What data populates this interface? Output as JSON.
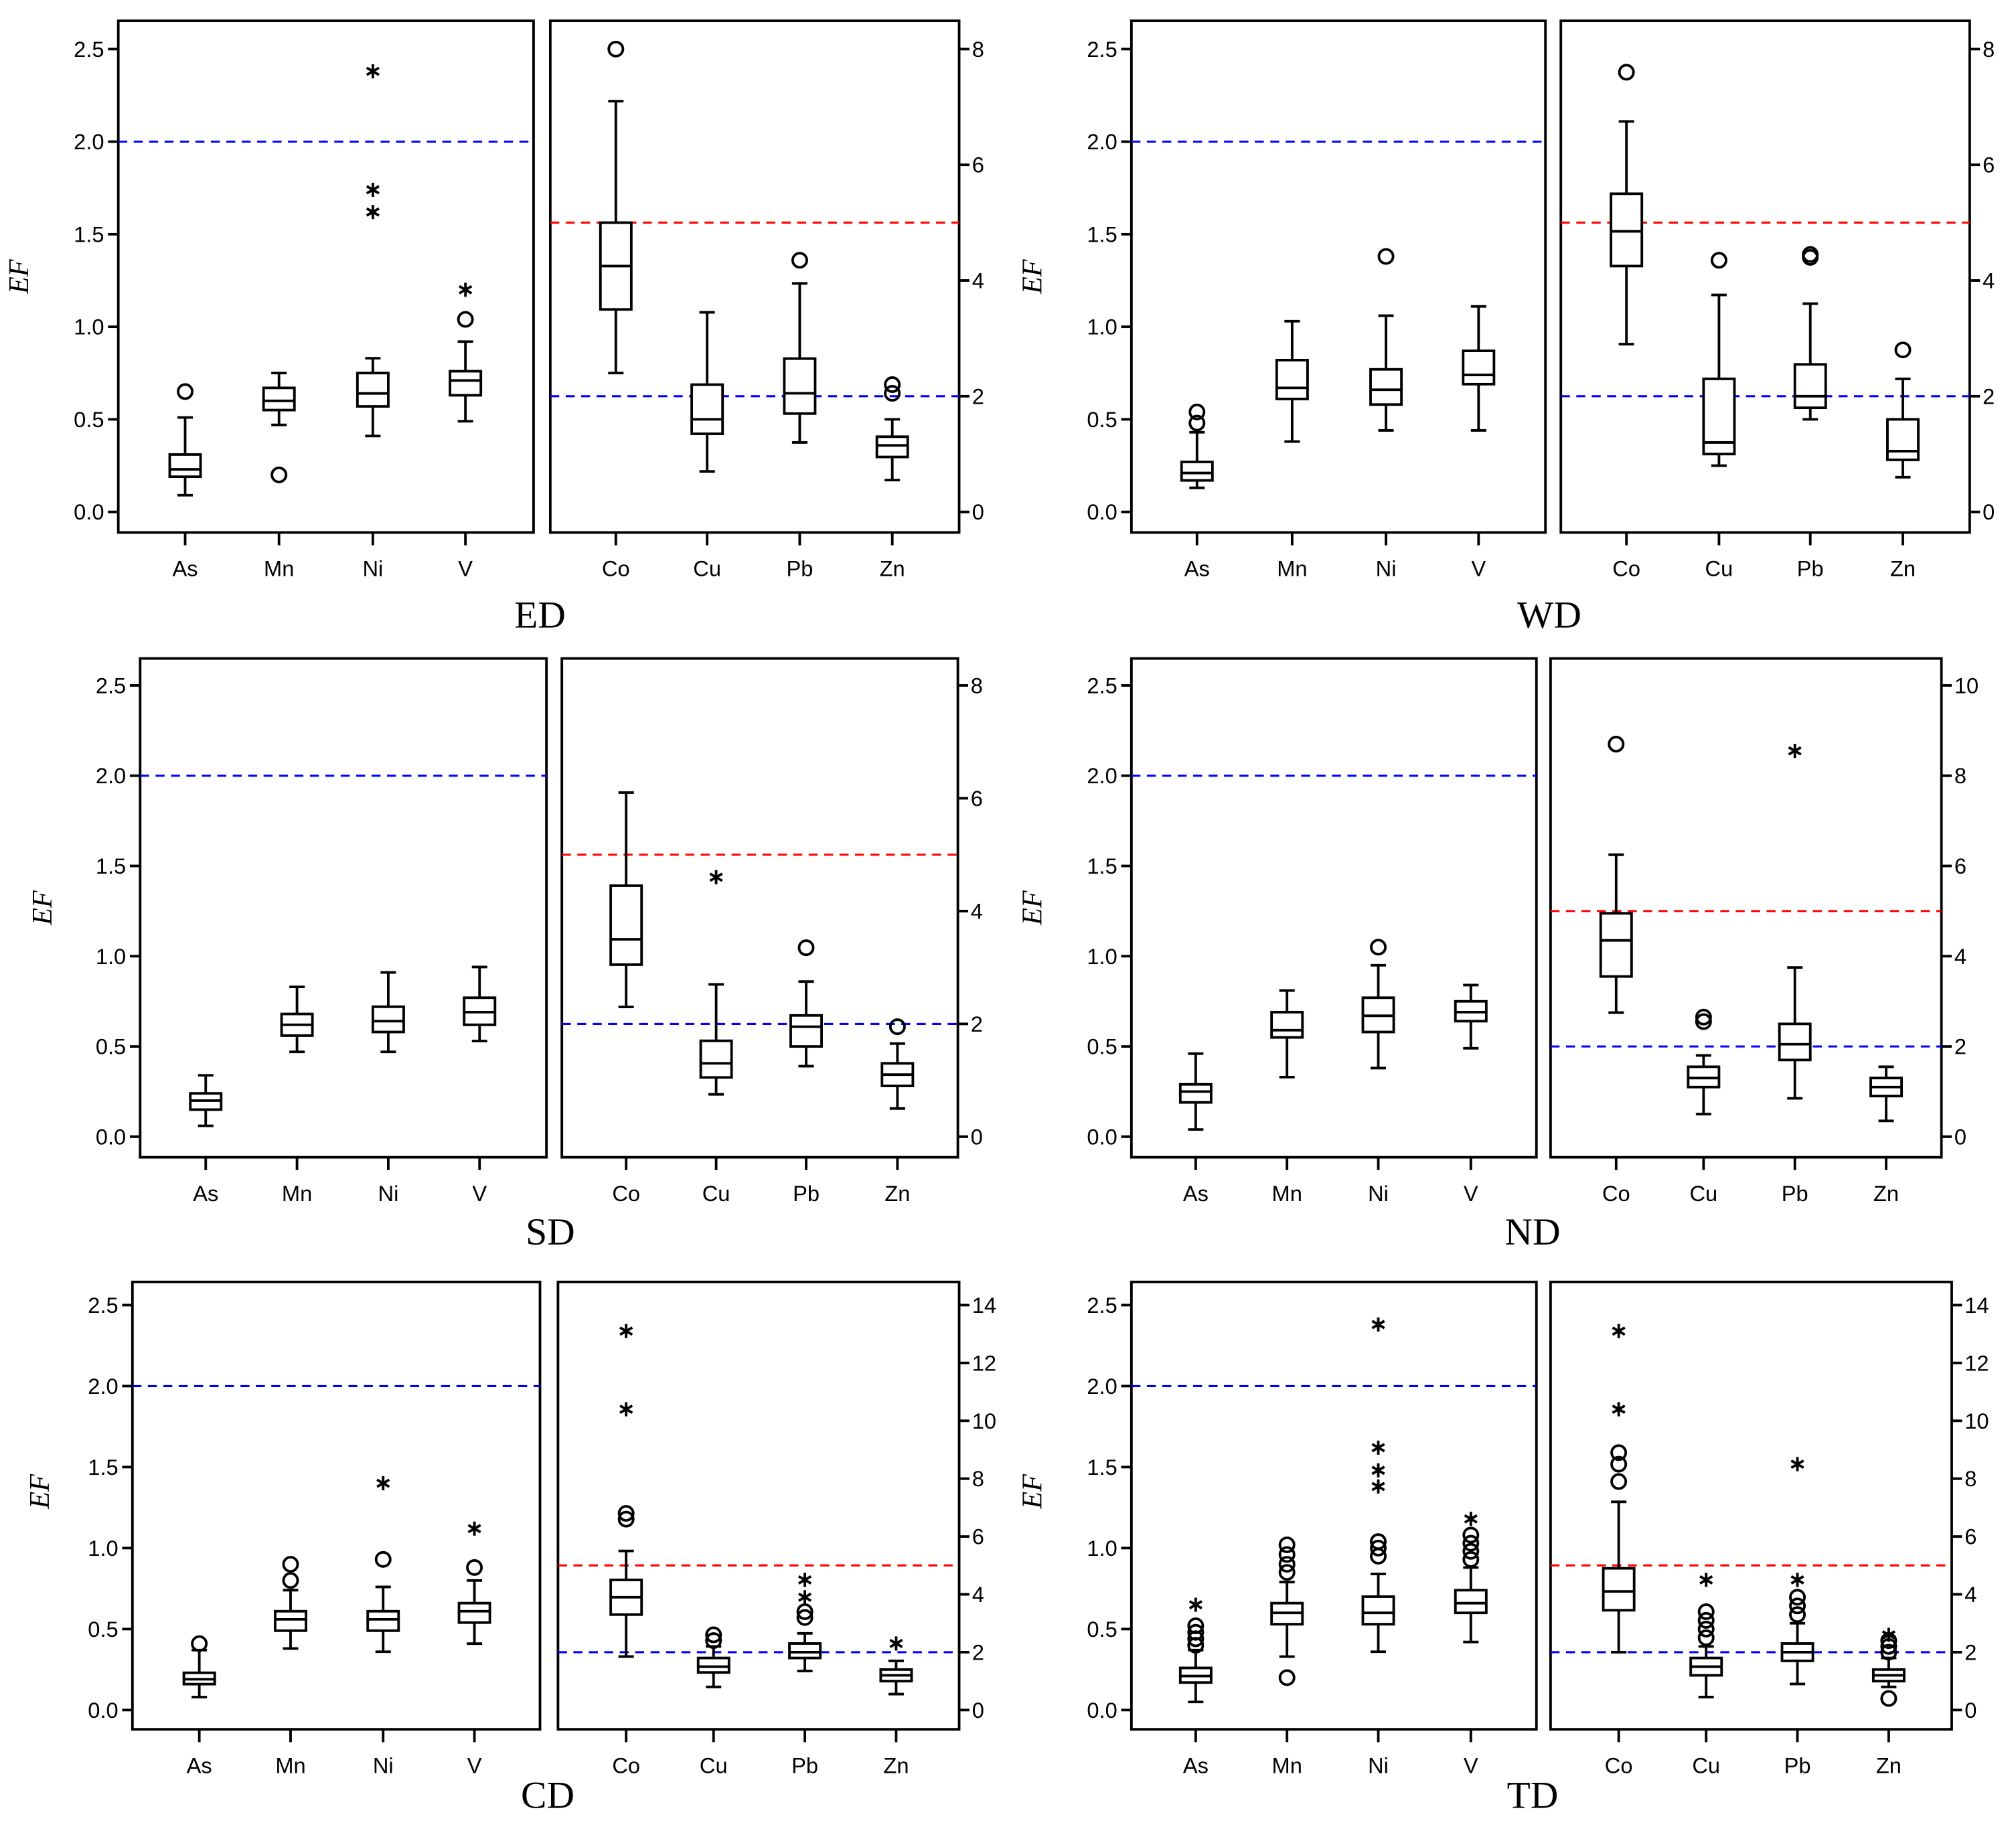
{
  "chart_data": {
    "type": "boxplot",
    "ylabel": "EF",
    "reference_lines": {
      "left": [
        {
          "value": 2,
          "color": "#0000ff"
        }
      ],
      "right": [
        {
          "value": 5,
          "color": "#ff0000"
        },
        {
          "value": 2,
          "color": "#0000ff"
        }
      ]
    },
    "panels": [
      {
        "title": "ED",
        "left": {
          "ylim": [
            0,
            2.5
          ],
          "ticks": [
            "0.0",
            "0.5",
            "1.0",
            "1.5",
            "2.0",
            "2.5"
          ],
          "tick_values": [
            0,
            0.5,
            1,
            1.5,
            2,
            2.5
          ],
          "boxes": [
            {
              "cat": "As",
              "min": 0.09,
              "q1": 0.19,
              "median": 0.23,
              "q3": 0.31,
              "max": 0.51,
              "circles": [
                0.65
              ],
              "stars": []
            },
            {
              "cat": "Mn",
              "min": 0.47,
              "q1": 0.55,
              "median": 0.6,
              "q3": 0.67,
              "max": 0.75,
              "circles": [
                0.2
              ],
              "stars": []
            },
            {
              "cat": "Ni",
              "min": 0.41,
              "q1": 0.57,
              "median": 0.64,
              "q3": 0.75,
              "max": 0.83,
              "circles": [],
              "stars": [
                1.62,
                1.74,
                2.38
              ]
            },
            {
              "cat": "V",
              "min": 0.49,
              "q1": 0.63,
              "median": 0.71,
              "q3": 0.76,
              "max": 0.92,
              "circles": [
                1.04
              ],
              "stars": [
                1.2
              ]
            }
          ]
        },
        "right": {
          "ylim": [
            0,
            8
          ],
          "ticks": [
            "0",
            "2",
            "4",
            "6",
            "8"
          ],
          "tick_values": [
            0,
            2,
            4,
            6,
            8
          ],
          "boxes": [
            {
              "cat": "Co",
              "min": 2.4,
              "q1": 3.5,
              "median": 4.25,
              "q3": 5.0,
              "max": 7.1,
              "circles": [
                8.0
              ],
              "stars": []
            },
            {
              "cat": "Cu",
              "min": 0.7,
              "q1": 1.35,
              "median": 1.6,
              "q3": 2.2,
              "max": 3.45,
              "circles": [],
              "stars": []
            },
            {
              "cat": "Pb",
              "min": 1.2,
              "q1": 1.7,
              "median": 2.05,
              "q3": 2.65,
              "max": 3.95,
              "circles": [
                4.35
              ],
              "stars": []
            },
            {
              "cat": "Zn",
              "min": 0.55,
              "q1": 0.95,
              "median": 1.15,
              "q3": 1.3,
              "max": 1.6,
              "circles": [
                2.05,
                2.2
              ],
              "stars": []
            }
          ]
        }
      },
      {
        "title": "WD",
        "left": {
          "ylim": [
            0,
            2.5
          ],
          "ticks": [
            "0.0",
            "0.5",
            "1.0",
            "1.5",
            "2.0",
            "2.5"
          ],
          "tick_values": [
            0,
            0.5,
            1,
            1.5,
            2,
            2.5
          ],
          "boxes": [
            {
              "cat": "As",
              "min": 0.13,
              "q1": 0.17,
              "median": 0.21,
              "q3": 0.27,
              "max": 0.43,
              "circles": [
                0.48,
                0.54
              ],
              "stars": []
            },
            {
              "cat": "Mn",
              "min": 0.38,
              "q1": 0.61,
              "median": 0.67,
              "q3": 0.82,
              "max": 1.03,
              "circles": [],
              "stars": []
            },
            {
              "cat": "Ni",
              "min": 0.44,
              "q1": 0.58,
              "median": 0.66,
              "q3": 0.77,
              "max": 1.06,
              "circles": [
                1.38
              ],
              "stars": []
            },
            {
              "cat": "V",
              "min": 0.44,
              "q1": 0.69,
              "median": 0.74,
              "q3": 0.87,
              "max": 1.11,
              "circles": [],
              "stars": []
            }
          ]
        },
        "right": {
          "ylim": [
            0,
            8
          ],
          "ticks": [
            "0",
            "2",
            "4",
            "6",
            "8"
          ],
          "tick_values": [
            0,
            2,
            4,
            6,
            8
          ],
          "boxes": [
            {
              "cat": "Co",
              "min": 2.9,
              "q1": 4.25,
              "median": 4.85,
              "q3": 5.5,
              "max": 6.75,
              "circles": [
                7.6
              ],
              "stars": []
            },
            {
              "cat": "Cu",
              "min": 0.8,
              "q1": 1.0,
              "median": 1.2,
              "q3": 2.3,
              "max": 3.75,
              "circles": [
                4.35
              ],
              "stars": []
            },
            {
              "cat": "Pb",
              "min": 1.6,
              "q1": 1.8,
              "median": 2.0,
              "q3": 2.55,
              "max": 3.6,
              "circles": [
                4.4,
                4.45
              ],
              "stars": []
            },
            {
              "cat": "Zn",
              "min": 0.6,
              "q1": 0.9,
              "median": 1.05,
              "q3": 1.6,
              "max": 2.3,
              "circles": [
                2.8
              ],
              "stars": []
            }
          ]
        }
      },
      {
        "title": "SD",
        "left": {
          "ylim": [
            0,
            2.5
          ],
          "ticks": [
            "0.0",
            "0.5",
            "1.0",
            "1.5",
            "2.0",
            "2.5"
          ],
          "tick_values": [
            0,
            0.5,
            1,
            1.5,
            2,
            2.5
          ],
          "boxes": [
            {
              "cat": "As",
              "min": 0.06,
              "q1": 0.15,
              "median": 0.2,
              "q3": 0.24,
              "max": 0.34,
              "circles": [],
              "stars": []
            },
            {
              "cat": "Mn",
              "min": 0.47,
              "q1": 0.56,
              "median": 0.62,
              "q3": 0.68,
              "max": 0.83,
              "circles": [],
              "stars": []
            },
            {
              "cat": "Ni",
              "min": 0.47,
              "q1": 0.58,
              "median": 0.64,
              "q3": 0.72,
              "max": 0.91,
              "circles": [],
              "stars": []
            },
            {
              "cat": "V",
              "min": 0.53,
              "q1": 0.62,
              "median": 0.69,
              "q3": 0.77,
              "max": 0.94,
              "circles": [],
              "stars": []
            }
          ]
        },
        "right": {
          "ylim": [
            0,
            8
          ],
          "ticks": [
            "0",
            "2",
            "4",
            "6",
            "8"
          ],
          "tick_values": [
            0,
            2,
            4,
            6,
            8
          ],
          "boxes": [
            {
              "cat": "Co",
              "min": 2.3,
              "q1": 3.05,
              "median": 3.5,
              "q3": 4.45,
              "max": 6.1,
              "circles": [],
              "stars": []
            },
            {
              "cat": "Cu",
              "min": 0.75,
              "q1": 1.05,
              "median": 1.3,
              "q3": 1.7,
              "max": 2.7,
              "circles": [],
              "stars": [
                4.6
              ]
            },
            {
              "cat": "Pb",
              "min": 1.25,
              "q1": 1.6,
              "median": 1.95,
              "q3": 2.15,
              "max": 2.75,
              "circles": [
                3.35
              ],
              "stars": []
            },
            {
              "cat": "Zn",
              "min": 0.5,
              "q1": 0.9,
              "median": 1.1,
              "q3": 1.3,
              "max": 1.65,
              "circles": [
                1.95
              ],
              "stars": []
            }
          ]
        }
      },
      {
        "title": "ND",
        "left": {
          "ylim": [
            0,
            2.5
          ],
          "ticks": [
            "0.0",
            "0.5",
            "1.0",
            "1.5",
            "2.0",
            "2.5"
          ],
          "tick_values": [
            0,
            0.5,
            1,
            1.5,
            2,
            2.5
          ],
          "boxes": [
            {
              "cat": "As",
              "min": 0.04,
              "q1": 0.19,
              "median": 0.25,
              "q3": 0.29,
              "max": 0.46,
              "circles": [],
              "stars": []
            },
            {
              "cat": "Mn",
              "min": 0.33,
              "q1": 0.55,
              "median": 0.59,
              "q3": 0.69,
              "max": 0.81,
              "circles": [],
              "stars": []
            },
            {
              "cat": "Ni",
              "min": 0.38,
              "q1": 0.58,
              "median": 0.67,
              "q3": 0.77,
              "max": 0.95,
              "circles": [
                1.05
              ],
              "stars": []
            },
            {
              "cat": "V",
              "min": 0.49,
              "q1": 0.64,
              "median": 0.69,
              "q3": 0.75,
              "max": 0.84,
              "circles": [],
              "stars": []
            }
          ]
        },
        "right": {
          "ylim": [
            0,
            10
          ],
          "ticks": [
            "0",
            "2",
            "4",
            "6",
            "8",
            "10"
          ],
          "tick_values": [
            0,
            2,
            4,
            6,
            8,
            10
          ],
          "boxes": [
            {
              "cat": "Co",
              "min": 2.75,
              "q1": 3.55,
              "median": 4.35,
              "q3": 4.95,
              "max": 6.25,
              "circles": [
                8.7
              ],
              "stars": []
            },
            {
              "cat": "Cu",
              "min": 0.5,
              "q1": 1.1,
              "median": 1.3,
              "q3": 1.55,
              "max": 1.8,
              "circles": [
                2.55,
                2.65
              ],
              "stars": []
            },
            {
              "cat": "Pb",
              "min": 0.85,
              "q1": 1.7,
              "median": 2.05,
              "q3": 2.5,
              "max": 3.75,
              "circles": [],
              "stars": [
                8.55
              ]
            },
            {
              "cat": "Zn",
              "min": 0.35,
              "q1": 0.9,
              "median": 1.1,
              "q3": 1.3,
              "max": 1.55,
              "circles": [],
              "stars": []
            }
          ]
        }
      },
      {
        "title": "CD",
        "left": {
          "ylim": [
            0,
            2.5
          ],
          "ticks": [
            "0.0",
            "0.5",
            "1.0",
            "1.5",
            "2.0",
            "2.5"
          ],
          "tick_values": [
            0,
            0.5,
            1,
            1.5,
            2,
            2.5
          ],
          "boxes": [
            {
              "cat": "As",
              "min": 0.08,
              "q1": 0.16,
              "median": 0.19,
              "q3": 0.23,
              "max": 0.37,
              "circles": [
                0.41
              ],
              "stars": []
            },
            {
              "cat": "Mn",
              "min": 0.38,
              "q1": 0.49,
              "median": 0.56,
              "q3": 0.61,
              "max": 0.74,
              "circles": [
                0.8,
                0.9
              ],
              "stars": []
            },
            {
              "cat": "Ni",
              "min": 0.36,
              "q1": 0.49,
              "median": 0.56,
              "q3": 0.61,
              "max": 0.76,
              "circles": [
                0.93
              ],
              "stars": [
                1.4
              ]
            },
            {
              "cat": "V",
              "min": 0.41,
              "q1": 0.54,
              "median": 0.61,
              "q3": 0.66,
              "max": 0.8,
              "circles": [
                0.88
              ],
              "stars": [
                1.12
              ]
            }
          ]
        },
        "right": {
          "ylim": [
            0,
            14
          ],
          "ticks": [
            "0",
            "2",
            "4",
            "6",
            "8",
            "10",
            "12",
            "14"
          ],
          "tick_values": [
            0,
            2,
            4,
            6,
            8,
            10,
            12,
            14
          ],
          "boxes": [
            {
              "cat": "Co",
              "min": 1.85,
              "q1": 3.3,
              "median": 3.9,
              "q3": 4.5,
              "max": 5.5,
              "circles": [
                6.6,
                6.8
              ],
              "stars": [
                10.4,
                13.1
              ]
            },
            {
              "cat": "Cu",
              "min": 0.8,
              "q1": 1.3,
              "median": 1.5,
              "q3": 1.8,
              "max": 2.2,
              "circles": [
                2.4,
                2.6
              ],
              "stars": []
            },
            {
              "cat": "Pb",
              "min": 1.35,
              "q1": 1.8,
              "median": 2.0,
              "q3": 2.3,
              "max": 2.65,
              "circles": [
                3.2,
                3.4
              ],
              "stars": [
                3.9,
                4.5
              ]
            },
            {
              "cat": "Zn",
              "min": 0.55,
              "q1": 1.0,
              "median": 1.2,
              "q3": 1.4,
              "max": 1.7,
              "circles": [],
              "stars": [
                2.3
              ]
            }
          ]
        }
      },
      {
        "title": "TD",
        "left": {
          "ylim": [
            0,
            2.5
          ],
          "ticks": [
            "0.0",
            "0.5",
            "1.0",
            "1.5",
            "2.0",
            "2.5"
          ],
          "tick_values": [
            0,
            0.5,
            1,
            1.5,
            2,
            2.5
          ],
          "boxes": [
            {
              "cat": "As",
              "min": 0.05,
              "q1": 0.17,
              "median": 0.21,
              "q3": 0.26,
              "max": 0.37,
              "circles": [
                0.4,
                0.44,
                0.48,
                0.52
              ],
              "stars": [
                0.65
              ]
            },
            {
              "cat": "Mn",
              "min": 0.33,
              "q1": 0.53,
              "median": 0.6,
              "q3": 0.66,
              "max": 0.79,
              "circles": [
                0.2,
                0.85,
                0.9,
                0.96,
                1.02
              ],
              "stars": []
            },
            {
              "cat": "Ni",
              "min": 0.36,
              "q1": 0.53,
              "median": 0.6,
              "q3": 0.7,
              "max": 0.84,
              "circles": [
                0.95,
                1.0,
                1.04
              ],
              "stars": [
                1.38,
                1.48,
                1.62,
                2.38
              ]
            },
            {
              "cat": "V",
              "min": 0.42,
              "q1": 0.6,
              "median": 0.66,
              "q3": 0.74,
              "max": 0.88,
              "circles": [
                0.93,
                0.98,
                1.03,
                1.08
              ],
              "stars": [
                1.18
              ]
            }
          ]
        },
        "right": {
          "ylim": [
            0,
            14
          ],
          "ticks": [
            "0",
            "2",
            "4",
            "6",
            "8",
            "10",
            "12",
            "14"
          ],
          "tick_values": [
            0,
            2,
            4,
            6,
            8,
            10,
            12,
            14
          ],
          "boxes": [
            {
              "cat": "Co",
              "min": 2.0,
              "q1": 3.45,
              "median": 4.1,
              "q3": 4.9,
              "max": 7.2,
              "circles": [
                7.9,
                8.5,
                8.9
              ],
              "stars": [
                10.4,
                13.1
              ]
            },
            {
              "cat": "Cu",
              "min": 0.45,
              "q1": 1.2,
              "median": 1.5,
              "q3": 1.8,
              "max": 2.2,
              "circles": [
                2.5,
                2.8,
                3.1,
                3.4
              ],
              "stars": [
                4.5
              ]
            },
            {
              "cat": "Pb",
              "min": 0.9,
              "q1": 1.7,
              "median": 2.0,
              "q3": 2.3,
              "max": 3.0,
              "circles": [
                3.3,
                3.6,
                3.9
              ],
              "stars": [
                4.5,
                8.5
              ]
            },
            {
              "cat": "Zn",
              "min": 0.8,
              "q1": 1.0,
              "median": 1.2,
              "q3": 1.4,
              "max": 1.8,
              "circles": [
                0.4,
                2.0,
                2.2,
                2.4
              ],
              "stars": [
                2.6
              ]
            }
          ]
        }
      }
    ]
  }
}
